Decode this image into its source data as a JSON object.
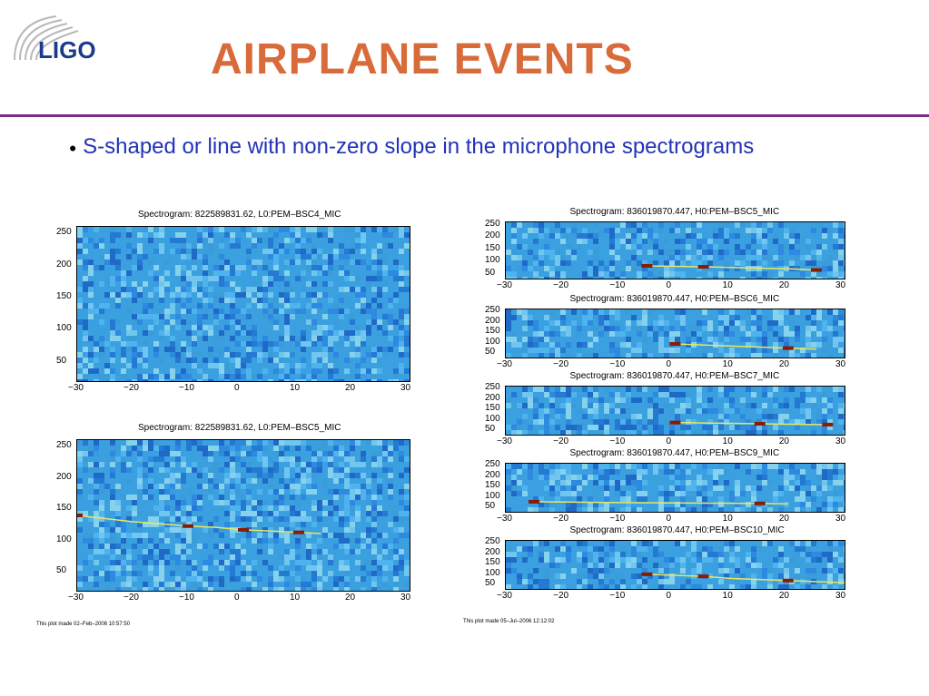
{
  "logo": {
    "text": "LIGO",
    "color": "#1a3a8c"
  },
  "title": "AIRPLANE EVENTS",
  "bullet": "S-shaped or line with non-zero slope in the microphone spectrograms",
  "footnotes": {
    "left": "This plot made 02–Feb–2006 10:57:50",
    "right": "This plot made 05–Jul–2006 12:12:02"
  },
  "colors": {
    "title": "#d96a3a",
    "bullet": "#2233b5",
    "rule": "#7a2b86",
    "spectrogram_bg": "#3aa0e0"
  },
  "chart_data": [
    {
      "type": "heatmap",
      "title": "Spectrogram: 822589831.62, L0:PEM–BSC4_MIC",
      "xlim": [
        -30,
        30
      ],
      "ylim": [
        20,
        260
      ],
      "xticks": [
        "−30",
        "−20",
        "−10",
        "0",
        "10",
        "20",
        "30"
      ],
      "yticks": [
        "250",
        "200",
        "150",
        "100",
        "50"
      ],
      "track": []
    },
    {
      "type": "heatmap",
      "title": "Spectrogram: 822589831.62, L0:PEM–BSC5_MIC",
      "xlim": [
        -30,
        30
      ],
      "ylim": [
        20,
        260
      ],
      "xticks": [
        "−30",
        "−20",
        "−10",
        "0",
        "10",
        "20",
        "30"
      ],
      "yticks": [
        "250",
        "200",
        "150",
        "100",
        "50"
      ],
      "track": [
        [
          -30,
          140
        ],
        [
          -20,
          130
        ],
        [
          -10,
          123
        ],
        [
          -5,
          121
        ],
        [
          0,
          117
        ],
        [
          5,
          115
        ],
        [
          10,
          113
        ],
        [
          14,
          111
        ]
      ]
    },
    {
      "type": "heatmap",
      "title": "Spectrogram: 836019870.447, H0:PEM–BSC5_MIC",
      "xlim": [
        -30,
        30
      ],
      "ylim": [
        30,
        260
      ],
      "xticks": [
        "−30",
        "−20",
        "−10",
        "0",
        "10",
        "20",
        "30"
      ],
      "yticks": [
        "250",
        "200",
        "150",
        "100",
        "50"
      ],
      "track": [
        [
          -5,
          82
        ],
        [
          0,
          80
        ],
        [
          5,
          78
        ],
        [
          20,
          70
        ],
        [
          25,
          65
        ]
      ]
    },
    {
      "type": "heatmap",
      "title": "Spectrogram: 836019870.447, H0:PEM–BSC6_MIC",
      "xlim": [
        -30,
        30
      ],
      "ylim": [
        30,
        260
      ],
      "xticks": [
        "−30",
        "−20",
        "−10",
        "0",
        "10",
        "20",
        "30"
      ],
      "yticks": [
        "250",
        "200",
        "150",
        "100",
        "50"
      ],
      "track": [
        [
          0,
          95
        ],
        [
          10,
          85
        ],
        [
          20,
          75
        ],
        [
          25,
          70
        ]
      ]
    },
    {
      "type": "heatmap",
      "title": "Spectrogram: 836019870.447, H0:PEM–BSC7_MIC",
      "xlim": [
        -30,
        30
      ],
      "ylim": [
        30,
        260
      ],
      "xticks": [
        "−30",
        "−20",
        "−10",
        "0",
        "10",
        "20",
        "30"
      ],
      "yticks": [
        "250",
        "200",
        "150",
        "100",
        "50"
      ],
      "track": [
        [
          0,
          88
        ],
        [
          5,
          86
        ],
        [
          15,
          82
        ],
        [
          20,
          80
        ],
        [
          27,
          78
        ]
      ]
    },
    {
      "type": "heatmap",
      "title": "Spectrogram: 836019870.447, H0:PEM–BSC9_MIC",
      "xlim": [
        -30,
        30
      ],
      "ylim": [
        30,
        260
      ],
      "xticks": [
        "−30",
        "−20",
        "−10",
        "0",
        "10",
        "20",
        "30"
      ],
      "yticks": [
        "250",
        "200",
        "150",
        "100",
        "50"
      ],
      "track": [
        [
          -25,
          78
        ],
        [
          -10,
          74
        ],
        [
          15,
          70
        ],
        [
          20,
          68
        ]
      ]
    },
    {
      "type": "heatmap",
      "title": "Spectrogram: 836019870.447, H0:PEM–BSC10_MIC",
      "xlim": [
        -30,
        30
      ],
      "ylim": [
        30,
        260
      ],
      "xticks": [
        "−30",
        "−20",
        "−10",
        "0",
        "10",
        "20",
        "30"
      ],
      "yticks": [
        "250",
        "200",
        "150",
        "100",
        "50"
      ],
      "track": [
        [
          -5,
          100
        ],
        [
          0,
          95
        ],
        [
          5,
          90
        ],
        [
          10,
          80
        ],
        [
          20,
          70
        ],
        [
          30,
          60
        ]
      ]
    }
  ]
}
